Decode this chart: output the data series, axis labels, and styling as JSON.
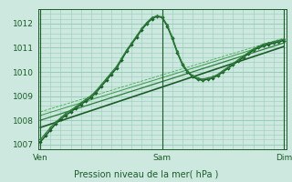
{
  "xlabel": "Pression niveau de la mer( hPa )",
  "xtick_labels": [
    "Ven",
    "Sam",
    "Dim"
  ],
  "xtick_positions": [
    0.0,
    1.0,
    2.0
  ],
  "ylim": [
    1006.8,
    1012.6
  ],
  "yticks": [
    1007,
    1008,
    1009,
    1010,
    1011,
    1012
  ],
  "bg_color": "#cce8df",
  "grid_color": "#99ccbb",
  "lc1": "#1a5c28",
  "lc2": "#2e7d3a",
  "lc3": "#3a9948",
  "lc4": "#4aaa55",
  "series_x": [
    0.0,
    0.042,
    0.083,
    0.125,
    0.167,
    0.208,
    0.25,
    0.292,
    0.333,
    0.375,
    0.417,
    0.458,
    0.5,
    0.542,
    0.583,
    0.625,
    0.667,
    0.708,
    0.75,
    0.792,
    0.833,
    0.875,
    0.917,
    0.958,
    1.0,
    1.042,
    1.083,
    1.125,
    1.167,
    1.208,
    1.25,
    1.292,
    1.333,
    1.375,
    1.417,
    1.458,
    1.5,
    1.542,
    1.583,
    1.625,
    1.667,
    1.708,
    1.75,
    1.792,
    1.833,
    1.875,
    1.917,
    1.958,
    2.0
  ],
  "vals1": [
    1007.1,
    1007.35,
    1007.6,
    1007.85,
    1008.05,
    1008.2,
    1008.35,
    1008.5,
    1008.65,
    1008.8,
    1008.95,
    1009.15,
    1009.4,
    1009.65,
    1009.9,
    1010.15,
    1010.5,
    1010.85,
    1011.15,
    1011.45,
    1011.75,
    1012.0,
    1012.2,
    1012.3,
    1012.25,
    1011.9,
    1011.4,
    1010.8,
    1010.3,
    1010.0,
    1009.8,
    1009.7,
    1009.65,
    1009.7,
    1009.75,
    1009.85,
    1010.0,
    1010.15,
    1010.3,
    1010.45,
    1010.6,
    1010.75,
    1010.9,
    1011.0,
    1011.1,
    1011.15,
    1011.2,
    1011.25,
    1011.3
  ],
  "vals2": [
    1007.2,
    1007.45,
    1007.7,
    1007.92,
    1008.1,
    1008.28,
    1008.42,
    1008.56,
    1008.72,
    1008.87,
    1009.02,
    1009.22,
    1009.47,
    1009.72,
    1009.97,
    1010.22,
    1010.56,
    1010.9,
    1011.2,
    1011.5,
    1011.8,
    1012.05,
    1012.25,
    1012.32,
    1012.28,
    1011.95,
    1011.45,
    1010.85,
    1010.35,
    1010.05,
    1009.85,
    1009.75,
    1009.7,
    1009.75,
    1009.8,
    1009.9,
    1010.05,
    1010.2,
    1010.35,
    1010.5,
    1010.65,
    1010.8,
    1010.95,
    1011.05,
    1011.15,
    1011.2,
    1011.25,
    1011.3,
    1011.35
  ],
  "trend_lines": [
    {
      "x": [
        0.0,
        2.0
      ],
      "y": [
        1007.7,
        1011.05
      ],
      "lw": 1.2,
      "color": "#1a5c28"
    },
    {
      "x": [
        0.0,
        2.0
      ],
      "y": [
        1008.0,
        1011.2
      ],
      "lw": 0.9,
      "color": "#2e7d3a"
    },
    {
      "x": [
        0.0,
        2.0
      ],
      "y": [
        1008.2,
        1011.32
      ],
      "lw": 0.7,
      "color": "#3a9948"
    },
    {
      "x": [
        0.0,
        2.0
      ],
      "y": [
        1008.35,
        1011.4
      ],
      "lw": 0.6,
      "color": "#4aaa55",
      "ls": "--"
    }
  ]
}
